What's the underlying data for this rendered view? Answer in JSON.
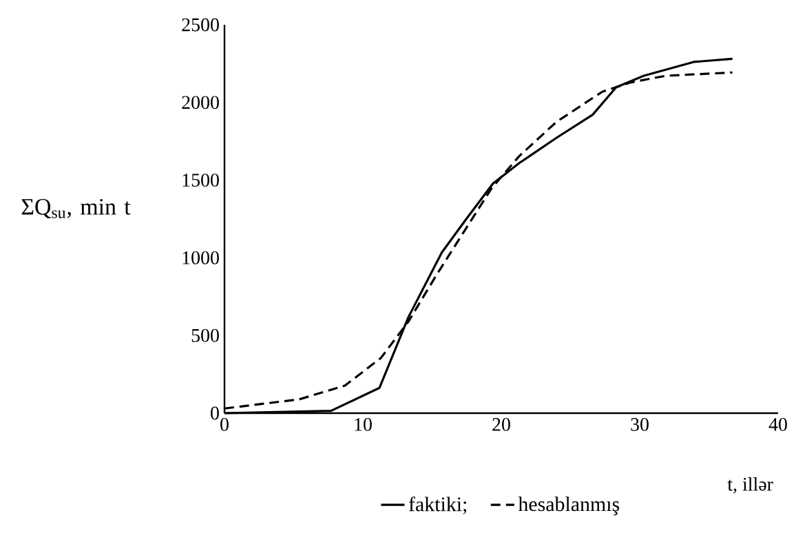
{
  "chart_data": {
    "type": "line",
    "ylabel": "ΣQ$_{su}$, min t",
    "xlabel": "t, illər",
    "xlim": [
      0,
      40
    ],
    "xticks": [
      0,
      10,
      20,
      30,
      40
    ],
    "ylim": [
      0,
      2500
    ],
    "yticks": [
      0,
      500,
      1000,
      1500,
      2000,
      2500
    ],
    "legend": "bottom",
    "grid": false,
    "marker": "none",
    "series": [
      {
        "name": "faktiki;",
        "color": "#000000",
        "line_style": "solid",
        "x": [
          0,
          7.7,
          11.2,
          13.3,
          15.7,
          17.4,
          19.4,
          21.3,
          24.0,
          26.6,
          28.3,
          30.3,
          33.9,
          36.7
        ],
        "values": [
          0,
          15,
          163,
          620,
          1034,
          1241,
          1478,
          1610,
          1773,
          1921,
          2098,
          2172,
          2261,
          2281
        ]
      },
      {
        "name": "hesablanmış",
        "color": "#000000",
        "line_style": "dashed",
        "x": [
          0,
          5.4,
          8.7,
          11.3,
          13.3,
          15.3,
          17.4,
          19.3,
          21.3,
          24.0,
          27.3,
          29.3,
          31.9,
          36.7
        ],
        "values": [
          30,
          89,
          177,
          355,
          591,
          887,
          1182,
          1448,
          1655,
          1876,
          2069,
          2128,
          2172,
          2193
        ]
      }
    ]
  }
}
